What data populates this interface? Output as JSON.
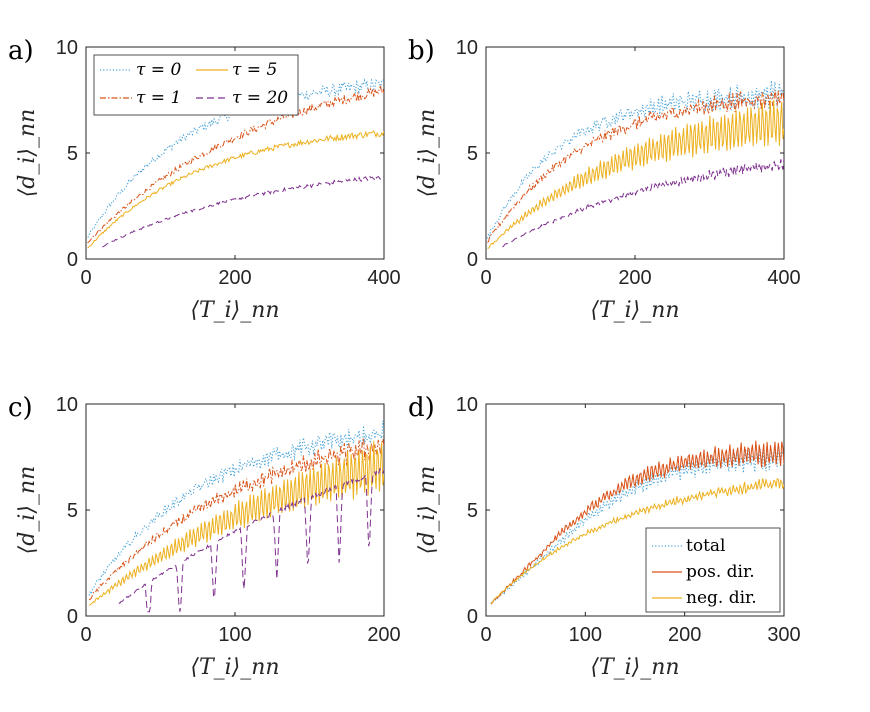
{
  "colors": {
    "blue": "#4aa3d8",
    "orange": "#d95319",
    "yellow": "#edb120",
    "purple": "#7e2f8e",
    "axis": "#262626"
  },
  "chart_data": [
    {
      "type": "line",
      "panel_label": "a)",
      "xlabel": "⟨T_i⟩_nn",
      "ylabel": "⟨d_i⟩_nn",
      "xlim": [
        0,
        400
      ],
      "ylim": [
        0,
        10
      ],
      "xticks": [
        "0",
        "200",
        "400"
      ],
      "yticks": [
        "0",
        "5",
        "10"
      ],
      "legend_placement": "top-left",
      "legend": [
        "τ = 0",
        "τ = 1",
        "τ = 5",
        "τ = 20"
      ],
      "series": [
        {
          "name": "τ = 0",
          "color": "blue",
          "dash": "dotted",
          "x0": 2,
          "x1": 400,
          "y0": 1.0,
          "plateau": 8.6,
          "rate": 0.0075,
          "noise": 0.25,
          "osc": 0
        },
        {
          "name": "τ = 1",
          "color": "orange",
          "dash": "dashdot",
          "x0": 2,
          "x1": 400,
          "y0": 0.8,
          "plateau": 9.8,
          "rate": 0.004,
          "noise": 0.18,
          "osc": 0
        },
        {
          "name": "τ = 5",
          "color": "yellow",
          "dash": "solid",
          "x0": 2,
          "x1": 400,
          "y0": 0.5,
          "plateau": 6.4,
          "rate": 0.0065,
          "noise": 0.12,
          "osc": 0
        },
        {
          "name": "τ = 20",
          "color": "purple",
          "dash": "dashed",
          "x0": 22,
          "x1": 400,
          "y0": 0.6,
          "plateau": 4.6,
          "rate": 0.0045,
          "noise": 0.08,
          "osc": 0
        }
      ]
    },
    {
      "type": "line",
      "panel_label": "b)",
      "xlabel": "⟨T_i⟩_nn",
      "ylabel": "⟨d_i⟩_nn",
      "xlim": [
        0,
        400
      ],
      "ylim": [
        0,
        10
      ],
      "xticks": [
        "0",
        "200",
        "400"
      ],
      "yticks": [
        "0",
        "5",
        "10"
      ],
      "series": [
        {
          "name": "τ = 0",
          "color": "blue",
          "dash": "dotted",
          "x0": 2,
          "x1": 400,
          "y0": 1.0,
          "plateau": 7.9,
          "rate": 0.01,
          "noise": 0.3,
          "osc": 0.25
        },
        {
          "name": "τ = 1",
          "color": "orange",
          "dash": "dashdot",
          "x0": 2,
          "x1": 400,
          "y0": 0.8,
          "plateau": 8.0,
          "rate": 0.0075,
          "noise": 0.25,
          "osc": 0.2
        },
        {
          "name": "τ = 5",
          "color": "yellow",
          "dash": "solid",
          "x0": 2,
          "x1": 400,
          "y0": 0.5,
          "plateau": 7.4,
          "rate": 0.005,
          "noise": 0.1,
          "osc": 0.8
        },
        {
          "name": "τ = 20",
          "color": "purple",
          "dash": "dashed",
          "x0": 22,
          "x1": 400,
          "y0": 0.6,
          "plateau": 5.6,
          "rate": 0.004,
          "noise": 0.1,
          "osc": 0.15
        }
      ]
    },
    {
      "type": "line",
      "panel_label": "c)",
      "xlabel": "⟨T_i⟩_nn",
      "ylabel": "⟨d_i⟩_nn",
      "xlim": [
        0,
        200
      ],
      "ylim": [
        0,
        10
      ],
      "xticks": [
        "0",
        "100",
        "200"
      ],
      "yticks": [
        "0",
        "5",
        "10"
      ],
      "series": [
        {
          "name": "τ = 0",
          "color": "blue",
          "dash": "dotted",
          "x0": 2,
          "x1": 200,
          "y0": 1.0,
          "plateau": 9.2,
          "rate": 0.013,
          "noise": 0.3,
          "osc": 0.2
        },
        {
          "name": "τ = 1",
          "color": "orange",
          "dash": "dashdot",
          "x0": 2,
          "x1": 200,
          "y0": 0.8,
          "plateau": 9.5,
          "rate": 0.009,
          "noise": 0.25,
          "osc": 0.25
        },
        {
          "name": "τ = 5",
          "color": "yellow",
          "dash": "solid",
          "x0": 2,
          "x1": 200,
          "y0": 0.5,
          "plateau": 10.5,
          "rate": 0.0055,
          "noise": 0.1,
          "osc": 0.9
        },
        {
          "name": "τ = 20",
          "color": "purple",
          "dash": "dashed",
          "x0": 22,
          "x1": 200,
          "y0": 0.6,
          "plateau": 12.0,
          "rate": 0.0045,
          "noise": 0.1,
          "osc": 0,
          "dips": [
            42,
            63,
            86,
            106,
            128,
            149,
            170,
            190
          ]
        }
      ]
    },
    {
      "type": "line",
      "panel_label": "d)",
      "xlabel": "⟨T_i⟩_nn",
      "ylabel": "⟨d_i⟩_nn",
      "xlim": [
        0,
        300
      ],
      "ylim": [
        0,
        10
      ],
      "xticks": [
        "0",
        "100",
        "200",
        "300"
      ],
      "yticks": [
        "0",
        "5",
        "10"
      ],
      "legend_placement": "bottom-right",
      "legend": [
        "total",
        "pos. dir.",
        "neg. dir."
      ],
      "series": [
        {
          "name": "total",
          "color": "blue",
          "dash": "dotted",
          "x0": 5,
          "x1": 300,
          "y0": 0.6,
          "plateau": 7.5,
          "rate": 0.009,
          "noise": 0.15,
          "osc": 0.35,
          "shape": "sig"
        },
        {
          "name": "pos. dir.",
          "color": "orange",
          "dash": "solid",
          "x0": 5,
          "x1": 300,
          "y0": 0.6,
          "plateau": 7.7,
          "rate": 0.01,
          "noise": 0.15,
          "osc": 0.4,
          "shape": "sig"
        },
        {
          "name": "neg. dir.",
          "color": "yellow",
          "dash": "solid",
          "x0": 5,
          "x1": 300,
          "y0": 0.6,
          "plateau": 7.0,
          "rate": 0.0075,
          "noise": 0.1,
          "osc": 0.15,
          "shape": "sig2"
        }
      ]
    }
  ]
}
